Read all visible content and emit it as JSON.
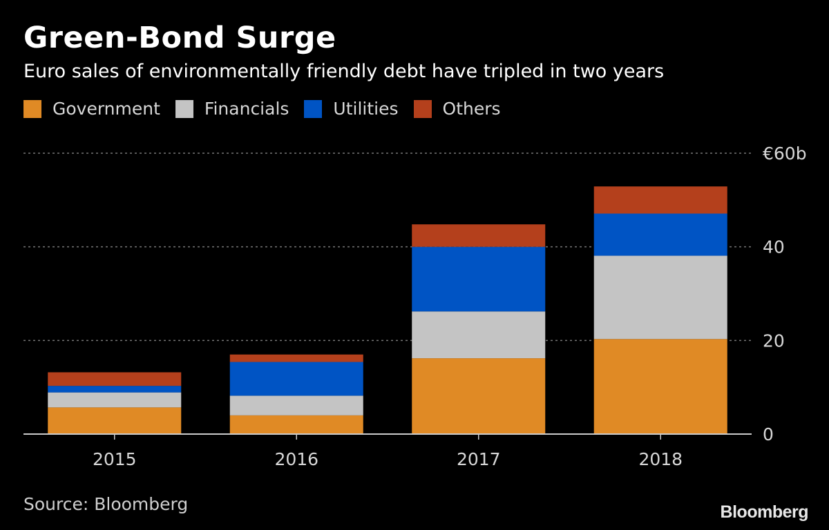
{
  "title": "Green-Bond Surge",
  "subtitle": "Euro sales of environmentally friendly debt have tripled in two years",
  "source": "Source: Bloomberg",
  "logo": "Bloomberg",
  "colors": {
    "government": "#e08a25",
    "financials": "#c4c4c4",
    "utilities": "#0054c4",
    "others": "#b4401c",
    "grid": "#777777",
    "axis": "#cccccc",
    "text": "#d8d8d8"
  },
  "chart_data": {
    "type": "bar",
    "stacked": true,
    "categories": [
      "2015",
      "2016",
      "2017",
      "2018"
    ],
    "series": [
      {
        "name": "Government",
        "color_key": "government",
        "values": [
          5.7,
          4.0,
          16.2,
          20.3
        ]
      },
      {
        "name": "Financials",
        "color_key": "financials",
        "values": [
          3.2,
          4.2,
          10.0,
          17.8
        ]
      },
      {
        "name": "Utilities",
        "color_key": "utilities",
        "values": [
          1.4,
          7.2,
          13.8,
          9.0
        ]
      },
      {
        "name": "Others",
        "color_key": "others",
        "values": [
          2.9,
          1.6,
          4.8,
          5.8
        ]
      }
    ],
    "ylim": [
      0,
      60
    ],
    "yticks": [
      {
        "value": 0,
        "label": "0"
      },
      {
        "value": 20,
        "label": "20"
      },
      {
        "value": 40,
        "label": "40"
      },
      {
        "value": 60,
        "label": "€60b"
      }
    ],
    "grid": true,
    "legend_position": "top-left",
    "y_axis_side": "right"
  }
}
